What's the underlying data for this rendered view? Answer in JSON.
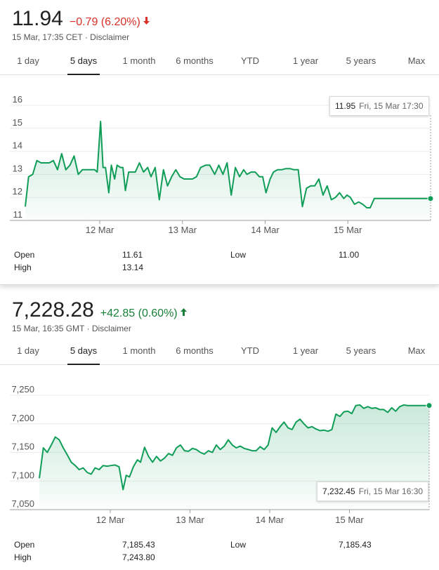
{
  "tabs": [
    "1 day",
    "5 days",
    "1 month",
    "6 months",
    "YTD",
    "1 year",
    "5 years",
    "Max"
  ],
  "active_tab": "5 days",
  "colors": {
    "line": "#0f9d58",
    "down": "#d93025",
    "up": "#188038",
    "fill": "#e6f4ea"
  },
  "stocks": [
    {
      "price": "11.94",
      "change": "−0.79 (6.20%)",
      "direction": "down",
      "subtitle": "15 Mar, 17:35 CET · Disclaimer",
      "tooltip": {
        "value": "11.95",
        "time": "Fri, 15 Mar 17:30"
      },
      "stats": {
        "open_label": "Open",
        "open": "11.61",
        "high_label": "High",
        "high": "13.14",
        "low_label": "Low",
        "low": "11.00"
      }
    },
    {
      "price": "7,228.28",
      "change": "+42.85 (0.60%)",
      "direction": "up",
      "subtitle": "15 Mar, 16:35 GMT · Disclaimer",
      "tooltip": {
        "value": "7,232.45",
        "time": "Fri, 15 Mar 16:30"
      },
      "stats": {
        "open_label": "Open",
        "open": "7,185.43",
        "high_label": "High",
        "high": "7,243.80",
        "low_label": "Low",
        "low": "7,185.43"
      }
    }
  ],
  "chart_data": [
    {
      "type": "line",
      "title": "",
      "xlabel": "",
      "ylabel": "",
      "x_tick_labels": [
        "12 Mar",
        "13 Mar",
        "14 Mar",
        "15 Mar"
      ],
      "y_tick_labels": [
        "11",
        "12",
        "13",
        "14",
        "15",
        "16"
      ],
      "ylim": [
        11,
        16
      ],
      "x_range": [
        -0.9,
        4.0
      ],
      "x_tick_positions": [
        0,
        1,
        2,
        3
      ],
      "grid": "horizontal",
      "series": [
        {
          "x": [
            -0.9,
            -0.86,
            -0.81,
            -0.76,
            -0.71,
            -0.66,
            -0.61,
            -0.56,
            -0.51,
            -0.46,
            -0.41,
            -0.36,
            -0.31,
            -0.26,
            -0.21,
            -0.16,
            -0.11,
            -0.06,
            -0.03,
            0.01,
            0.04,
            0.07,
            0.11,
            0.14,
            0.18,
            0.21,
            0.25,
            0.28,
            0.31,
            0.35,
            0.39,
            0.43,
            0.48,
            0.53,
            0.58,
            0.62,
            0.67,
            0.72,
            0.77,
            0.82,
            0.87,
            0.92,
            0.97,
            1.02,
            1.08,
            1.12,
            1.17,
            1.22,
            1.28,
            1.33,
            1.39,
            1.44,
            1.49,
            1.54,
            1.59,
            1.64,
            1.69,
            1.74,
            1.78,
            1.83,
            1.88,
            1.93,
            1.97,
            2.01,
            2.06,
            2.1,
            2.15,
            2.2,
            2.25,
            2.3,
            2.35,
            2.4,
            2.45,
            2.5,
            2.55,
            2.6,
            2.65,
            2.7,
            2.75,
            2.8,
            2.85,
            2.9,
            2.95,
            2.99,
            3.03,
            3.08,
            3.13,
            3.18,
            3.23,
            3.27,
            3.32,
            3.37,
            3.42,
            3.47,
            3.52,
            3.57,
            3.62,
            3.67,
            3.72,
            3.77,
            3.82,
            3.87,
            3.92,
            3.96,
            4.0
          ],
          "y": [
            11.6,
            12.9,
            13.0,
            13.6,
            13.5,
            13.5,
            13.5,
            13.6,
            13.2,
            13.9,
            13.2,
            13.4,
            13.8,
            13.0,
            13.2,
            13.2,
            13.2,
            13.2,
            13.1,
            15.3,
            13.3,
            13.3,
            12.2,
            13.4,
            12.8,
            13.4,
            13.3,
            13.3,
            12.3,
            13.1,
            13.1,
            13.1,
            13.5,
            13.1,
            13.3,
            12.9,
            13.3,
            11.9,
            13.2,
            12.5,
            12.9,
            13.2,
            12.9,
            12.8,
            12.8,
            12.8,
            12.9,
            13.3,
            13.4,
            13.4,
            13.0,
            13.4,
            13.0,
            13.5,
            12.1,
            13.3,
            12.9,
            13.2,
            13.0,
            13.1,
            13.1,
            12.9,
            12.9,
            12.2,
            12.8,
            13.1,
            13.2,
            13.2,
            13.25,
            13.25,
            13.2,
            13.2,
            11.6,
            12.4,
            12.5,
            12.5,
            12.8,
            12.1,
            12.5,
            11.9,
            12.0,
            12.2,
            11.95,
            12.1,
            12.0,
            11.7,
            11.8,
            11.7,
            11.55,
            11.55,
            11.95,
            11.95,
            11.95,
            11.95,
            11.95,
            11.95,
            11.95,
            11.95,
            11.95,
            11.95,
            11.95,
            11.95,
            11.95,
            11.95,
            11.95
          ]
        }
      ]
    },
    {
      "type": "line",
      "title": "",
      "xlabel": "",
      "ylabel": "",
      "x_tick_labels": [
        "12 Mar",
        "13 Mar",
        "14 Mar",
        "15 Mar"
      ],
      "y_tick_labels": [
        "7,050",
        "7,100",
        "7,150",
        "7,200",
        "7,250"
      ],
      "ylim": [
        7050,
        7250
      ],
      "x_range": [
        -0.89,
        4.0
      ],
      "x_tick_positions": [
        0,
        1,
        2,
        3
      ],
      "grid": "horizontal",
      "series": [
        {
          "x": [
            -0.89,
            -0.84,
            -0.79,
            -0.74,
            -0.69,
            -0.64,
            -0.59,
            -0.54,
            -0.49,
            -0.44,
            -0.39,
            -0.34,
            -0.29,
            -0.24,
            -0.19,
            -0.14,
            -0.09,
            -0.04,
            0.01,
            0.06,
            0.11,
            0.16,
            0.2,
            0.24,
            0.29,
            0.34,
            0.38,
            0.43,
            0.48,
            0.53,
            0.58,
            0.63,
            0.68,
            0.73,
            0.78,
            0.83,
            0.88,
            0.93,
            0.98,
            1.03,
            1.08,
            1.13,
            1.18,
            1.23,
            1.28,
            1.33,
            1.38,
            1.43,
            1.48,
            1.53,
            1.58,
            1.63,
            1.68,
            1.73,
            1.78,
            1.83,
            1.88,
            1.93,
            1.98,
            2.03,
            2.08,
            2.13,
            2.18,
            2.23,
            2.28,
            2.33,
            2.38,
            2.43,
            2.48,
            2.53,
            2.58,
            2.63,
            2.68,
            2.73,
            2.78,
            2.83,
            2.88,
            2.93,
            2.98,
            3.03,
            3.08,
            3.13,
            3.18,
            3.23,
            3.28,
            3.33,
            3.38,
            3.43,
            3.48,
            3.53,
            3.58,
            3.63,
            3.68,
            3.73,
            3.78,
            3.83,
            3.88,
            3.93,
            3.98,
            4.0
          ],
          "y": [
            7105,
            7158,
            7150,
            7163,
            7177,
            7172,
            7158,
            7146,
            7133,
            7127,
            7120,
            7123,
            7115,
            7112,
            7123,
            7120,
            7127,
            7126,
            7127,
            7128,
            7125,
            7085,
            7110,
            7107,
            7125,
            7137,
            7133,
            7159,
            7143,
            7133,
            7143,
            7135,
            7140,
            7148,
            7145,
            7158,
            7163,
            7153,
            7152,
            7157,
            7155,
            7150,
            7147,
            7153,
            7150,
            7163,
            7155,
            7161,
            7172,
            7163,
            7158,
            7161,
            7157,
            7155,
            7153,
            7153,
            7160,
            7155,
            7163,
            7193,
            7185,
            7195,
            7203,
            7193,
            7190,
            7203,
            7208,
            7200,
            7193,
            7195,
            7191,
            7188,
            7189,
            7187,
            7190,
            7217,
            7213,
            7221,
            7222,
            7218,
            7232,
            7233,
            7227,
            7230,
            7227,
            7228,
            7225,
            7225,
            7220,
            7228,
            7222,
            7230,
            7233,
            7232,
            7232,
            7232,
            7232,
            7232,
            7232,
            7232
          ]
        }
      ]
    }
  ]
}
